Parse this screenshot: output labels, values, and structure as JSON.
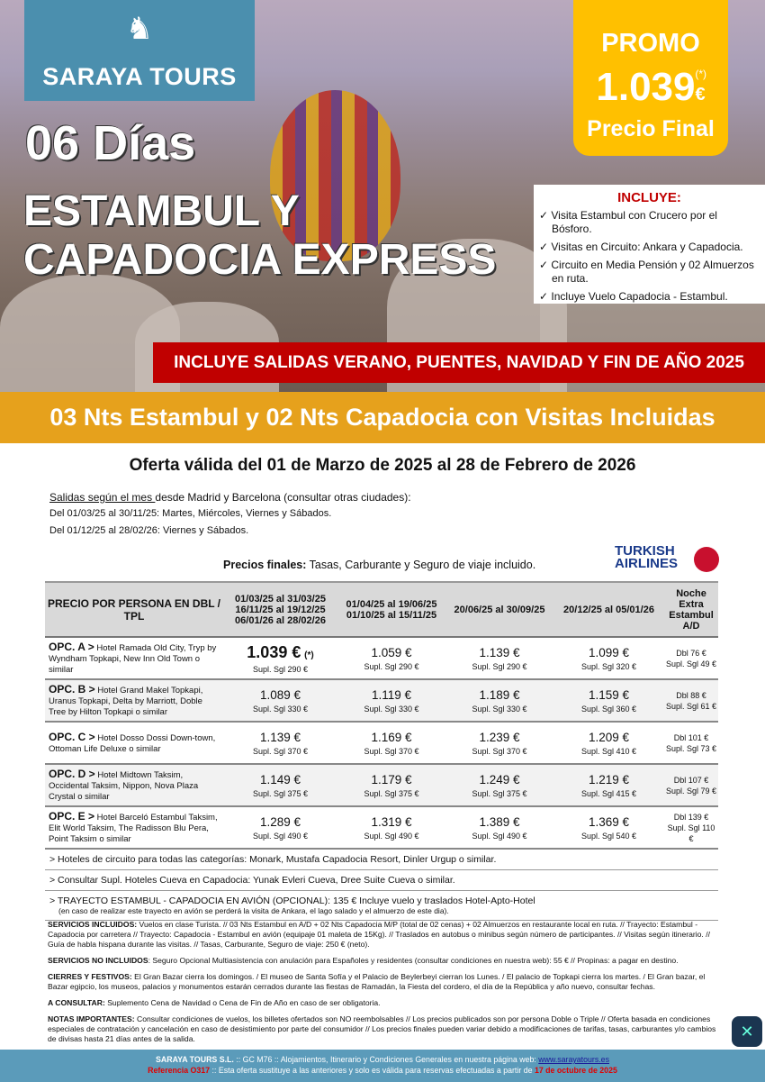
{
  "brand": {
    "name": "SARAYA TOURS",
    "logo_icon": "horse-head-icon"
  },
  "hero": {
    "days": "06 Días",
    "title_line1": "ESTAMBUL Y",
    "title_line2": "CAPADOCIA EXPRESS"
  },
  "promo": {
    "label": "PROMO",
    "note": "(*)",
    "price": "1.039",
    "currency": "€",
    "final": "Precio Final"
  },
  "incluye": {
    "title": "INCLUYE:",
    "items": [
      "✓ Visita Estambul con Crucero por el Bósforo.",
      "✓ Visitas en Circuito: Ankara y Capadocia.",
      "✓ Circuito en Media Pensión y 02 Almuerzos en ruta.",
      "✓ Incluye Vuelo Capadocia - Estambul."
    ]
  },
  "banner_red": "INCLUYE SALIDAS VERANO, PUENTES, NAVIDAD Y FIN DE AÑO 2025",
  "banner_orange": "03 Nts Estambul y 02 Nts Capadocia con Visitas Incluidas",
  "offer": "Oferta válida del 01 de Marzo de 2025 al 28 de Febrero de 2026",
  "salidas": {
    "underlined": "Salidas según el mes ",
    "rest": "desde Madrid y Barcelona (consultar otras ciudades):",
    "line1": "Del 01/03/25 al 30/11/25: Martes, Miércoles, Viernes y Sábados.",
    "line2": "Del 01/12/25 al 28/02/26: Viernes y Sábados."
  },
  "precios": {
    "bold": "Precios finales:",
    "rest": " Tasas, Carburante y Seguro de viaje incluido."
  },
  "airline": {
    "line1": "TURKISH",
    "line2": "AIRLINES"
  },
  "table": {
    "headers": [
      "PRECIO POR PERSONA EN DBL / TPL",
      "01/03/25 al 31/03/25\n16/11/25 al 19/12/25\n06/01/26 al 28/02/26",
      "01/04/25 al 19/06/25\n01/10/25 al 15/11/25",
      "20/06/25 al 30/09/25",
      "20/12/25 al 05/01/26",
      "Noche Extra Estambul A/D"
    ],
    "rows": [
      {
        "opt": "OPC. A >",
        "hotels": " Hotel Ramada Old City, Tryp by Wyndham Topkapi, New Inn Old Town o similar",
        "prices": [
          "1.039 €",
          "1.059 €",
          "1.139 €",
          "1.099 €"
        ],
        "note": "(*)",
        "supl": [
          "Supl. Sgl 290 €",
          "Supl. Sgl 290 €",
          "Supl. Sgl 290 €",
          "Supl. Sgl 320 €"
        ],
        "extra_dbl": "Dbl 76 €",
        "extra_sgl": "Supl. Sgl 49 €"
      },
      {
        "opt": "OPC. B >",
        "hotels": " Hotel Grand Makel Topkapi, Uranus Topkapi, Delta by Marriott, Doble Tree by Hilton Topkapi o similar",
        "prices": [
          "1.089 €",
          "1.119 €",
          "1.189 €",
          "1.159 €"
        ],
        "supl": [
          "Supl. Sgl 330 €",
          "Supl. Sgl 330 €",
          "Supl. Sgl 330 €",
          "Supl. Sgl 360 €"
        ],
        "extra_dbl": "Dbl 88 €",
        "extra_sgl": "Supl. Sgl 61 €"
      },
      {
        "opt": "OPC. C >",
        "hotels": " Hotel Dosso Dossi Down-town, Ottoman Life Deluxe o similar",
        "prices": [
          "1.139 €",
          "1.169 €",
          "1.239 €",
          "1.209 €"
        ],
        "supl": [
          "Supl. Sgl 370 €",
          "Supl. Sgl 370 €",
          "Supl. Sgl 370 €",
          "Supl. Sgl 410 €"
        ],
        "extra_dbl": "Dbl 101 €",
        "extra_sgl": "Supl. Sgl 73 €"
      },
      {
        "opt": "OPC. D >",
        "hotels": " Hotel Midtown Taksim, Occidental Taksim, Nippon, Nova Plaza Crystal o similar",
        "prices": [
          "1.149 €",
          "1.179 €",
          "1.249 €",
          "1.219 €"
        ],
        "supl": [
          "Supl. Sgl 375 €",
          "Supl. Sgl 375 €",
          "Supl. Sgl 375 €",
          "Supl. Sgl 415 €"
        ],
        "extra_dbl": "Dbl 107 €",
        "extra_sgl": "Supl. Sgl 79 €"
      },
      {
        "opt": "OPC. E >",
        "hotels": " Hotel Barceló Estambul Taksim, Elit World Taksim, The Radisson Blu Pera, Point Taksim o similar",
        "prices": [
          "1.289 €",
          "1.319 €",
          "1.389 €",
          "1.369 €"
        ],
        "supl": [
          "Supl. Sgl 490 €",
          "Supl. Sgl 490 €",
          "Supl. Sgl 490 €",
          "Supl. Sgl 540 €"
        ],
        "extra_dbl": "Dbl 139 €",
        "extra_sgl": "Supl. Sgl 110 €"
      }
    ]
  },
  "notes": [
    "> Hoteles de circuito para todas las categorías: Monark, Mustafa Capadocia Resort, Dinler Urgup o similar.",
    "> Consultar Supl. Hoteles Cueva en Capadocia: Yunak Evleri Cueva, Dree Suite Cueva o similar.",
    "> TRAYECTO ESTAMBUL - CAPADOCIA EN AVIÓN (OPCIONAL): 135 € Incluye vuelo y traslados Hotel-Apto-Hotel"
  ],
  "notes_small": "(en caso de realizar este trayecto en avión se perderá la visita de Ankara, el lago salado y el almuerzo de este dia).",
  "fine": [
    {
      "k": "SERVICIOS INCLUIDOS:",
      "v": " Vuelos en clase Turista. // 03 Nts Estambul en A/D + 02 Nts Capadocia M/P (total de 02 cenas) + 02 Almuerzos en restaurante local en ruta. // Trayecto: Estambul - Capadocia por carretera // Trayecto: Capadocia - Estambul en avión (equipaje 01 maleta de 15Kg). // Traslados en autobus o minibus según número de participantes. // Visitas según itinerario. // Guía de habla hispana durante las visitas. // Tasas, Carburante, Seguro de viaje: 250 € (neto)."
    },
    {
      "k": "SERVICIOS NO INCLUIDOS",
      "v": ": Seguro Opcional Multiasistencia con anulación para Españoles y residentes (consultar condiciones en nuestra web): 55 € // Propinas: a pagar en destino."
    },
    {
      "k": "CIERRES Y FESTIVOS:",
      "v": " El Gran Bazar cierra los domingos. / El museo de Santa Sofía y el Palacio de Beylerbeyi cierran los Lunes. / El palacio de Topkapi cierra los martes. / El Gran bazar, el Bazar egipcio, los museos, palacios y monumentos estarán cerrados durante las fiestas de Ramadán, la Fiesta del cordero, el día de la República y año nuevo, consultar fechas."
    },
    {
      "k": "A CONSULTAR:",
      "v": " Suplemento Cena de Navidad o Cena de Fin de Año en caso de ser obligatoria."
    },
    {
      "k": "NOTAS IMPORTANTES:",
      "v": " Consultar condiciones de vuelos, los billetes ofertados son NO reembolsables // Los precios publicados son por persona Doble o Triple // Oferta basada en condiciones especiales de contratación y cancelación en caso de desistimiento por parte del consumidor // Los precios finales pueden variar debido a modificaciones de tarifas, tasas, carburantes y/o cambios de divisas hasta 21 días antes de la salida."
    }
  ],
  "footer": {
    "company": "SARAYA TOURS S.L.",
    "mid": " :: GC M76 ::  Alojamientos, Itinerario y Condiciones Generales en nuestra página web:  ",
    "web": "www.sarayatours.es",
    "ref": "Referencia O317",
    "ref_text": " :: Esta oferta sustituye a las anteriores y solo es válida para reservas efectuadas a partir de ",
    "date": "17 de octubre de 2025"
  },
  "colors": {
    "teal": "#4b8fae",
    "promo": "#ffc000",
    "red": "#c00000",
    "orange": "#e6a11c"
  }
}
